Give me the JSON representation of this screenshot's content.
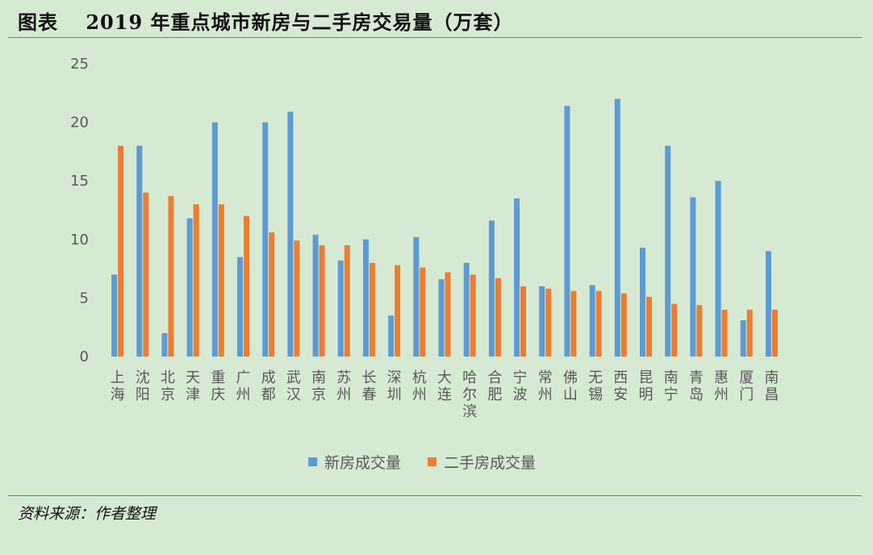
{
  "title": "图表　 2019 年重点城市新房与二手房交易量（万套）",
  "source": "资料来源：作者整理",
  "colors": {
    "background": "#d6ead3",
    "new_house": "#5b9bd5",
    "second_hand": "#ed7d31",
    "axis_text": "#595959",
    "rule": "#5b7fa6"
  },
  "chart_data": {
    "type": "bar",
    "title": "",
    "xlabel": "",
    "ylabel": "",
    "ylim": [
      0,
      25
    ],
    "yticks": [
      0,
      5,
      10,
      15,
      20,
      25
    ],
    "grid": false,
    "legend_position": "bottom",
    "categories": [
      "上海",
      "沈阳",
      "北京",
      "天津",
      "重庆",
      "广州",
      "成都",
      "武汉",
      "南京",
      "苏州",
      "长春",
      "深圳",
      "杭州",
      "大连",
      "哈尔滨",
      "合肥",
      "宁波",
      "常州",
      "佛山",
      "无锡",
      "西安",
      "昆明",
      "南宁",
      "青岛",
      "惠州",
      "厦门",
      "南昌"
    ],
    "series": [
      {
        "name": "新房成交量",
        "values": [
          7.0,
          18.0,
          2.0,
          11.8,
          20.0,
          8.5,
          20.0,
          20.9,
          10.4,
          8.2,
          10.0,
          3.5,
          10.2,
          6.6,
          8.0,
          11.6,
          13.5,
          6.0,
          21.4,
          6.1,
          22.0,
          9.3,
          18.0,
          13.6,
          15.0,
          3.1,
          9.0
        ]
      },
      {
        "name": "二手房成交量",
        "values": [
          18.0,
          14.0,
          13.7,
          13.0,
          13.0,
          12.0,
          10.6,
          9.9,
          9.5,
          9.5,
          8.0,
          7.8,
          7.6,
          7.2,
          7.0,
          6.7,
          6.0,
          5.8,
          5.6,
          5.6,
          5.4,
          5.1,
          4.5,
          4.4,
          4.0,
          4.0,
          4.0
        ]
      }
    ]
  }
}
